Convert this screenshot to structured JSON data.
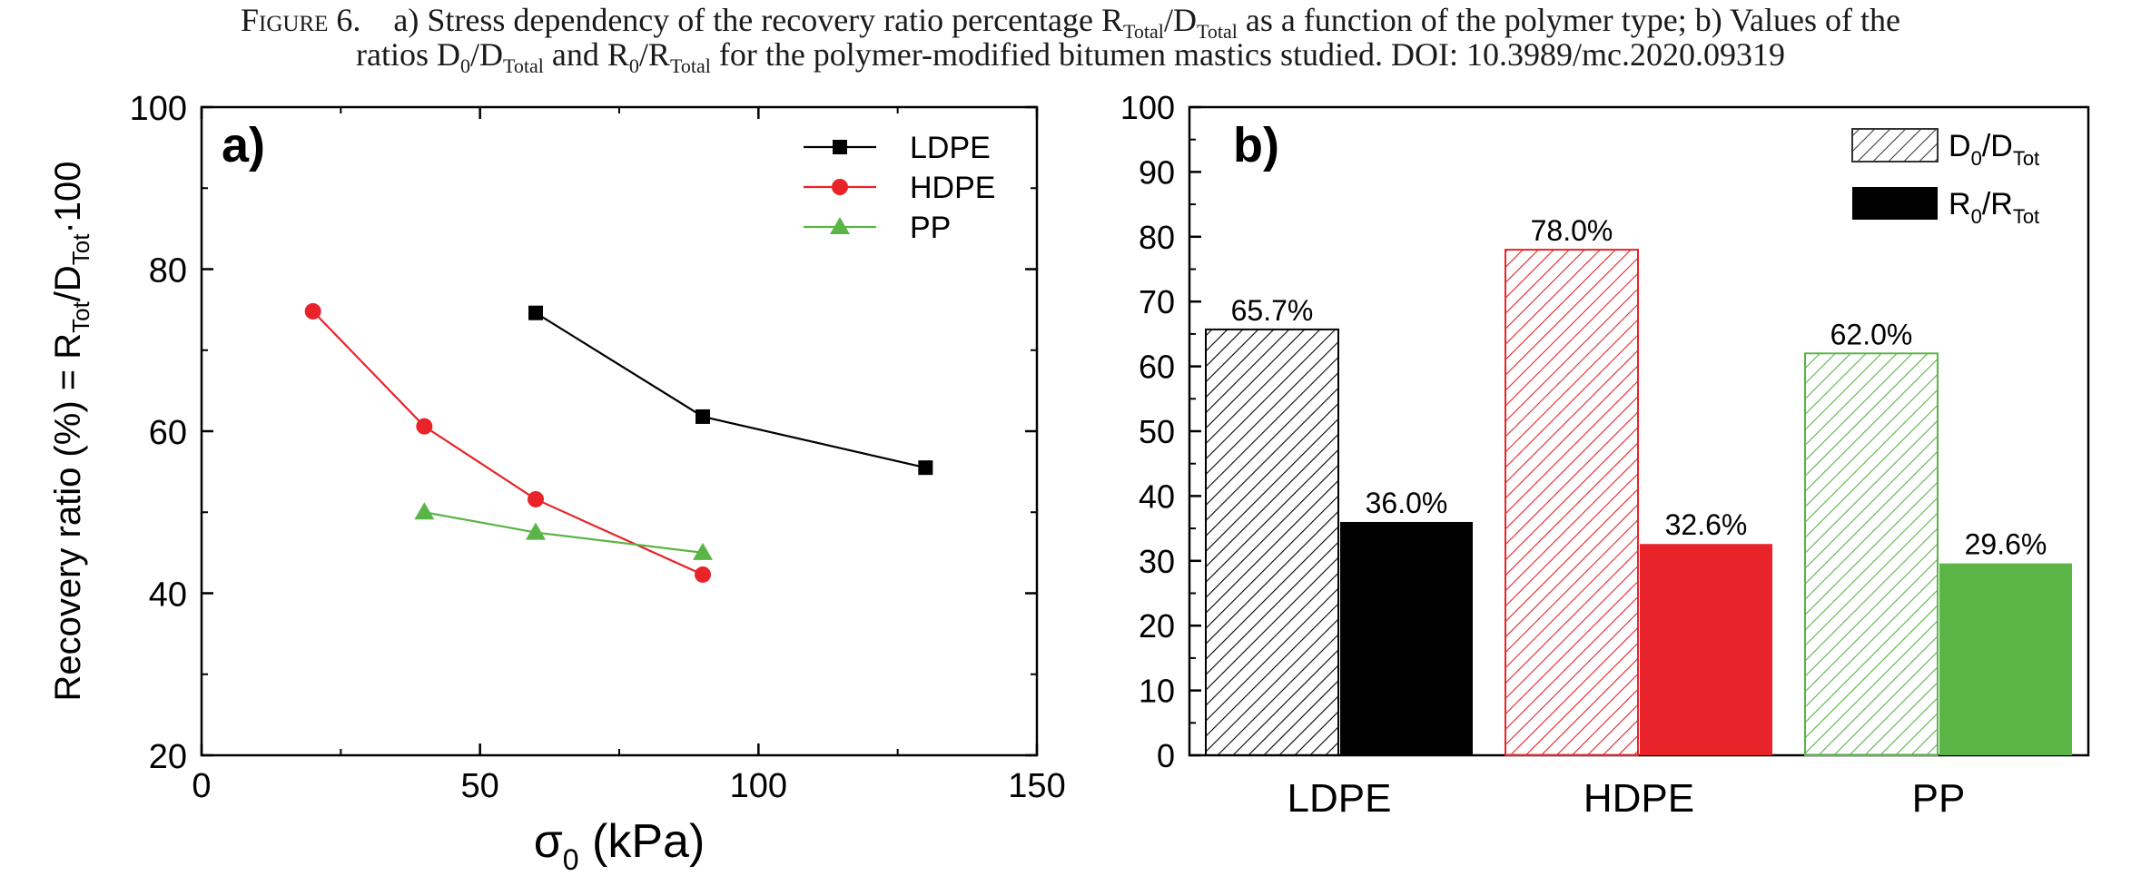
{
  "caption": {
    "fig_label": "Figure 6.",
    "line1_part1": "a) Stress dependency of the recovery ratio percentage R",
    "line1_sub1": "Total",
    "line1_part2": "/D",
    "line1_sub2": "Total",
    "line1_part3": " as a function of the polymer type; b) Values of the",
    "line2_part1": "ratios D",
    "line2_sub1": "0",
    "line2_part2": "/D",
    "line2_sub2": "Total",
    "line2_part3": " and R",
    "line2_sub3": "0",
    "line2_part4": "/R",
    "line2_sub4": "Total",
    "line2_part5": " for the polymer-modified bitumen mastics studied. DOI: 10.3989/mc.2020.09319"
  },
  "chart_data": [
    {
      "type": "line",
      "panel_label": "a)",
      "xlabel": "σ",
      "xlabel_sub": "0",
      "xlabel_unit": " (kPa)",
      "ylabel_parts": [
        "Recovery ratio (%) = R",
        "Tot",
        "/D",
        "Tot",
        "·100"
      ],
      "xlim": [
        0,
        150
      ],
      "ylim": [
        20,
        100
      ],
      "xticks": [
        0,
        50,
        100,
        150
      ],
      "yticks": [
        20,
        40,
        60,
        80,
        100
      ],
      "legend_position": "top-right",
      "series": [
        {
          "name": "LDPE",
          "marker": "square",
          "color": "#000000",
          "x": [
            60,
            90,
            130
          ],
          "y": [
            74.6,
            61.8,
            55.5
          ]
        },
        {
          "name": "HDPE",
          "marker": "circle",
          "color": "#e8232a",
          "x": [
            20,
            40,
            60,
            90
          ],
          "y": [
            74.8,
            60.6,
            51.6,
            42.3
          ]
        },
        {
          "name": "PP",
          "marker": "triangle",
          "color": "#5ab446",
          "x": [
            40,
            60,
            90
          ],
          "y": [
            50.0,
            47.5,
            45.0
          ]
        }
      ]
    },
    {
      "type": "bar",
      "panel_label": "b)",
      "categories": [
        "LDPE",
        "HDPE",
        "PP"
      ],
      "ylim": [
        0,
        100
      ],
      "yticks": [
        0,
        10,
        20,
        30,
        40,
        50,
        60,
        70,
        80,
        90,
        100
      ],
      "legend_position": "top-right",
      "colors": [
        "#000000",
        "#e8232a",
        "#5ab446"
      ],
      "series": [
        {
          "name_parts": [
            "D",
            "0",
            "/D",
            "Tot"
          ],
          "style": "hatched",
          "values": [
            65.7,
            78.0,
            62.0
          ],
          "labels": [
            "65.7%",
            "78.0%",
            "62.0%"
          ]
        },
        {
          "name_parts": [
            "R",
            "0",
            "/R",
            "Tot"
          ],
          "style": "solid",
          "values": [
            36.0,
            32.6,
            29.6
          ],
          "labels": [
            "36.0%",
            "32.6%",
            "29.6%"
          ]
        }
      ]
    }
  ]
}
